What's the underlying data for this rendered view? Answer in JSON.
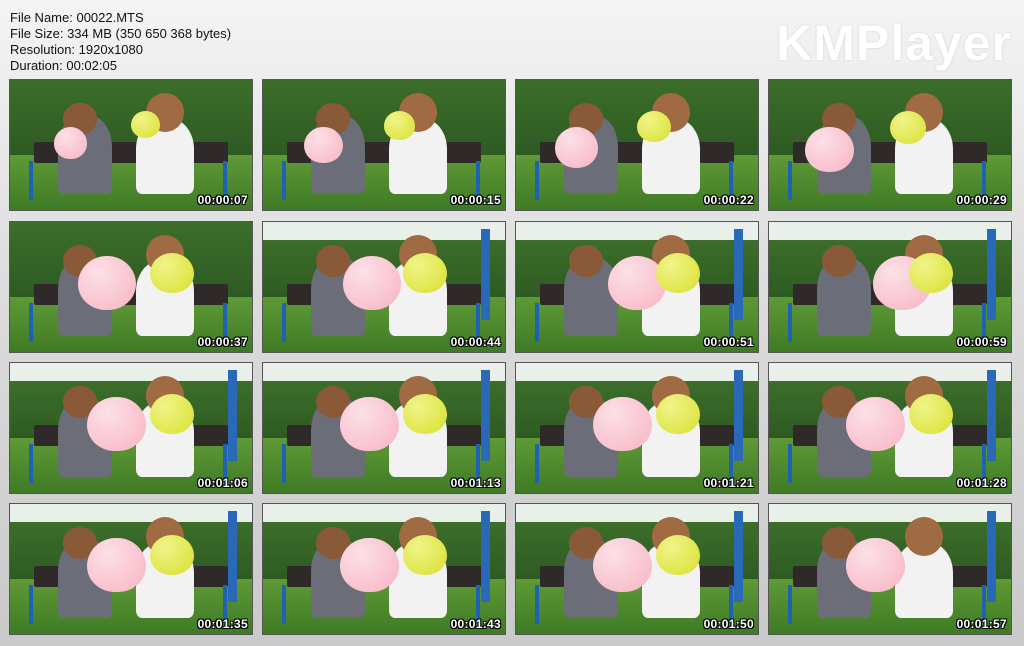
{
  "file_info": {
    "name": "File Name: 00022.MTS",
    "size": "File Size: 334 MB (350 650 368 bytes)",
    "resolution": "Resolution: 1920x1080",
    "duration": "Duration: 00:02:05"
  },
  "logo": "KMPlayer",
  "colors": {
    "pink": "#f6b3c2",
    "yellow": "#d8e02c",
    "hedge": "#2e5a22",
    "grass": "#4f8a2e",
    "bench": "#2f2a29",
    "blue": "#1f62b3"
  },
  "thumbnails": [
    {
      "time": "00:00:07"
    },
    {
      "time": "00:00:15"
    },
    {
      "time": "00:00:22"
    },
    {
      "time": "00:00:29"
    },
    {
      "time": "00:00:37"
    },
    {
      "time": "00:00:44"
    },
    {
      "time": "00:00:51"
    },
    {
      "time": "00:00:59"
    },
    {
      "time": "00:01:06"
    },
    {
      "time": "00:01:13"
    },
    {
      "time": "00:01:21"
    },
    {
      "time": "00:01:28"
    },
    {
      "time": "00:01:35"
    },
    {
      "time": "00:01:43"
    },
    {
      "time": "00:01:50"
    },
    {
      "time": "00:01:57"
    }
  ]
}
